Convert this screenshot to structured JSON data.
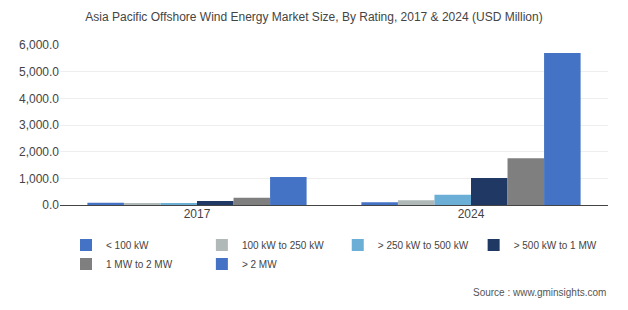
{
  "chart_data": {
    "type": "bar",
    "title": "Asia Pacific Offshore Wind Energy Market Size, By Rating, 2017 & 2024 (USD Million)",
    "categories": [
      "2017",
      "2024"
    ],
    "series": [
      {
        "name": "< 100 kW",
        "color": "#4472c4",
        "values": [
          80,
          100
        ]
      },
      {
        "name": "100 kW to 250 kW",
        "color": "#b0b8b8",
        "values": [
          60,
          180
        ]
      },
      {
        "name": "> 250 kW to 500 kW",
        "color": "#6baed6",
        "values": [
          50,
          380
        ]
      },
      {
        "name": "> 500 kW to 1 MW",
        "color": "#1f3864",
        "values": [
          150,
          1010
        ]
      },
      {
        "name": "1 MW to 2 MW",
        "color": "#7f7f7f",
        "values": [
          270,
          1750
        ]
      },
      {
        "name": "> 2 MW",
        "color": "#4472c4",
        "values": [
          1050,
          5700
        ]
      }
    ],
    "ylim": [
      0,
      6000
    ],
    "yticks": [
      {
        "value": 0,
        "label": "0.0"
      },
      {
        "value": 1000,
        "label": "1,000.0"
      },
      {
        "value": 2000,
        "label": "2,000.0"
      },
      {
        "value": 3000,
        "label": "3,000.0"
      },
      {
        "value": 4000,
        "label": "4,000.0"
      },
      {
        "value": 5000,
        "label": "5,000.0"
      },
      {
        "value": 6000,
        "label": "6,000.0"
      }
    ],
    "grid": true,
    "legend": "bottom",
    "annotations": [
      "Source : www.gminsights.com"
    ]
  }
}
